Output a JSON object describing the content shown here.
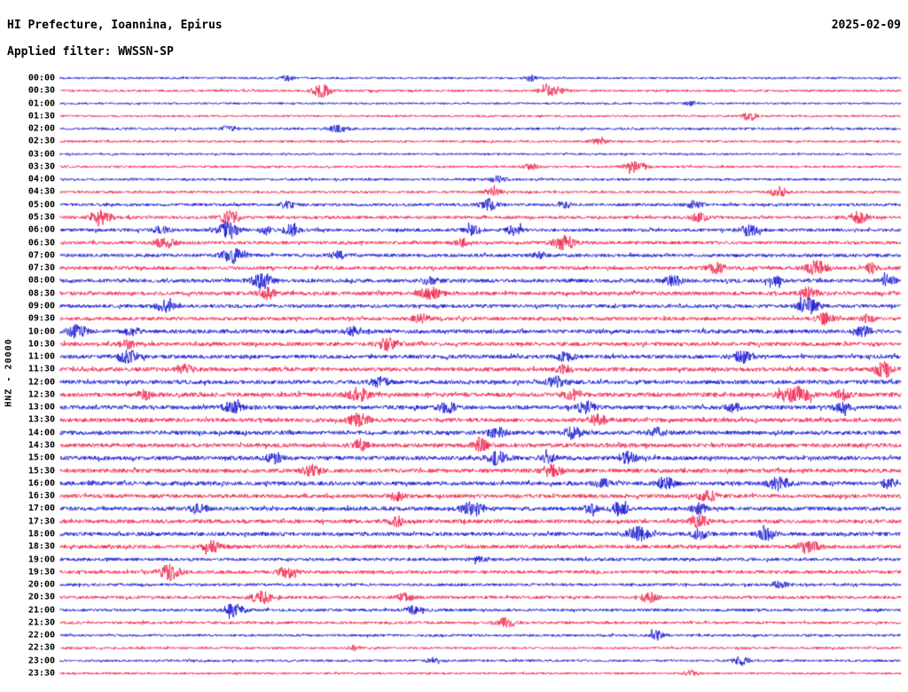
{
  "header": {
    "title": "HI Prefecture, Ioannina, Epirus",
    "date": "2025-02-09",
    "filter_line": "Applied filter: WWSSN-SP"
  },
  "axis": {
    "left_label": "HNZ - 20000"
  },
  "chart_data": {
    "type": "line",
    "title": "HI Prefecture, Ioannina, Epirus",
    "subtitle": "Applied filter: WWSSN-SP",
    "date": "2025-02-09",
    "ylabel": "HNZ - 20000",
    "layout": "helicorder, 48 half-hour traces stacked vertically, alternating colors, grid off, no x-axis ticks",
    "row_interval_minutes": 30,
    "colors": {
      "blue": "#0d0dcf",
      "red": "#ef1a44"
    },
    "rows": [
      {
        "label": "00:00",
        "color": "blue",
        "noise": 1.2,
        "events": [
          [
            0.27,
            3,
            5
          ],
          [
            0.56,
            3,
            5
          ]
        ]
      },
      {
        "label": "00:30",
        "color": "red",
        "noise": 1.3,
        "events": [
          [
            0.31,
            7,
            7
          ],
          [
            0.585,
            5,
            9
          ]
        ]
      },
      {
        "label": "01:00",
        "color": "blue",
        "noise": 1.1,
        "events": [
          [
            0.75,
            2.5,
            5
          ]
        ]
      },
      {
        "label": "01:30",
        "color": "red",
        "noise": 1.2,
        "events": [
          [
            0.82,
            5,
            5
          ]
        ]
      },
      {
        "label": "02:00",
        "color": "blue",
        "noise": 1.4,
        "events": [
          [
            0.2,
            3,
            6
          ],
          [
            0.33,
            3,
            8
          ]
        ]
      },
      {
        "label": "02:30",
        "color": "red",
        "noise": 1.3,
        "events": [
          [
            0.64,
            2.5,
            6
          ]
        ]
      },
      {
        "label": "03:00",
        "color": "blue",
        "noise": 1.1,
        "events": []
      },
      {
        "label": "03:30",
        "color": "red",
        "noise": 1.3,
        "events": [
          [
            0.685,
            6,
            8
          ],
          [
            0.56,
            3,
            6
          ]
        ]
      },
      {
        "label": "04:00",
        "color": "blue",
        "noise": 1.4,
        "events": [
          [
            0.52,
            3.5,
            6
          ]
        ]
      },
      {
        "label": "04:30",
        "color": "red",
        "noise": 1.4,
        "events": [
          [
            0.515,
            5,
            6
          ],
          [
            0.855,
            6,
            6
          ]
        ]
      },
      {
        "label": "05:00",
        "color": "blue",
        "noise": 1.6,
        "events": [
          [
            0.27,
            3.5,
            6
          ],
          [
            0.51,
            6,
            7
          ],
          [
            0.6,
            3.5,
            6
          ],
          [
            0.755,
            4,
            6
          ]
        ]
      },
      {
        "label": "05:30",
        "color": "red",
        "noise": 1.7,
        "events": [
          [
            0.05,
            7,
            8
          ],
          [
            0.2,
            7,
            8
          ],
          [
            0.76,
            4.5,
            7
          ],
          [
            0.95,
            6,
            7
          ]
        ]
      },
      {
        "label": "06:00",
        "color": "blue",
        "noise": 1.8,
        "events": [
          [
            0.12,
            4,
            6
          ],
          [
            0.2,
            8,
            8
          ],
          [
            0.245,
            5,
            5
          ],
          [
            0.275,
            6,
            6
          ],
          [
            0.49,
            5,
            6
          ],
          [
            0.54,
            5,
            6
          ],
          [
            0.82,
            6,
            7
          ]
        ]
      },
      {
        "label": "06:30",
        "color": "red",
        "noise": 1.8,
        "events": [
          [
            0.125,
            6,
            8
          ],
          [
            0.6,
            7,
            9
          ],
          [
            0.48,
            4,
            6
          ]
        ]
      },
      {
        "label": "07:00",
        "color": "blue",
        "noise": 1.9,
        "events": [
          [
            0.205,
            8,
            8
          ],
          [
            0.33,
            4,
            6
          ],
          [
            0.57,
            3.5,
            6
          ]
        ]
      },
      {
        "label": "07:30",
        "color": "red",
        "noise": 2.0,
        "events": [
          [
            0.78,
            5,
            7
          ],
          [
            0.9,
            8,
            8
          ],
          [
            0.965,
            5,
            5
          ]
        ]
      },
      {
        "label": "08:00",
        "color": "blue",
        "noise": 2.1,
        "events": [
          [
            0.24,
            8,
            8
          ],
          [
            0.44,
            4,
            6
          ],
          [
            0.73,
            5,
            7
          ],
          [
            0.85,
            5,
            6
          ],
          [
            0.985,
            6,
            5
          ]
        ]
      },
      {
        "label": "08:30",
        "color": "red",
        "noise": 2.1,
        "events": [
          [
            0.245,
            6,
            7
          ],
          [
            0.44,
            6,
            8
          ],
          [
            0.89,
            6,
            7
          ]
        ]
      },
      {
        "label": "09:00",
        "color": "blue",
        "noise": 2.0,
        "events": [
          [
            0.125,
            6,
            7
          ],
          [
            0.89,
            8,
            8
          ]
        ]
      },
      {
        "label": "09:30",
        "color": "red",
        "noise": 2.0,
        "events": [
          [
            0.43,
            4.5,
            7
          ],
          [
            0.91,
            6,
            7
          ],
          [
            0.96,
            4,
            5
          ]
        ]
      },
      {
        "label": "10:00",
        "color": "blue",
        "noise": 2.2,
        "events": [
          [
            0.02,
            7,
            7
          ],
          [
            0.085,
            4,
            6
          ],
          [
            0.35,
            4.5,
            7
          ],
          [
            0.955,
            6,
            6
          ]
        ]
      },
      {
        "label": "10:30",
        "color": "red",
        "noise": 2.2,
        "events": [
          [
            0.39,
            6,
            8
          ],
          [
            0.08,
            4,
            6
          ]
        ]
      },
      {
        "label": "11:00",
        "color": "blue",
        "noise": 2.2,
        "events": [
          [
            0.08,
            7,
            8
          ],
          [
            0.6,
            4.5,
            7
          ],
          [
            0.81,
            6,
            7
          ]
        ]
      },
      {
        "label": "11:30",
        "color": "red",
        "noise": 2.3,
        "events": [
          [
            0.15,
            4.5,
            6
          ],
          [
            0.6,
            4,
            6
          ],
          [
            0.98,
            8,
            7
          ]
        ]
      },
      {
        "label": "12:00",
        "color": "blue",
        "noise": 2.3,
        "events": [
          [
            0.38,
            4.5,
            7
          ],
          [
            0.59,
            5,
            8
          ]
        ]
      },
      {
        "label": "12:30",
        "color": "red",
        "noise": 2.4,
        "events": [
          [
            0.1,
            4.5,
            6
          ],
          [
            0.355,
            7,
            8
          ],
          [
            0.61,
            5,
            7
          ],
          [
            0.875,
            8,
            12
          ],
          [
            0.93,
            5,
            6
          ]
        ]
      },
      {
        "label": "13:00",
        "color": "blue",
        "noise": 2.3,
        "events": [
          [
            0.205,
            6,
            7
          ],
          [
            0.46,
            5,
            7
          ],
          [
            0.625,
            6,
            7
          ],
          [
            0.8,
            4,
            6
          ],
          [
            0.93,
            4.5,
            6
          ]
        ]
      },
      {
        "label": "13:30",
        "color": "red",
        "noise": 2.3,
        "events": [
          [
            0.355,
            7,
            8
          ],
          [
            0.64,
            5,
            7
          ]
        ]
      },
      {
        "label": "14:00",
        "color": "blue",
        "noise": 2.3,
        "events": [
          [
            0.52,
            5,
            7
          ],
          [
            0.61,
            6,
            7
          ],
          [
            0.71,
            5,
            6
          ]
        ]
      },
      {
        "label": "14:30",
        "color": "red",
        "noise": 2.3,
        "events": [
          [
            0.355,
            6,
            7
          ],
          [
            0.5,
            6,
            7
          ]
        ]
      },
      {
        "label": "15:00",
        "color": "blue",
        "noise": 2.3,
        "events": [
          [
            0.255,
            5,
            7
          ],
          [
            0.52,
            7,
            8
          ],
          [
            0.58,
            4,
            6
          ],
          [
            0.675,
            6,
            7
          ]
        ]
      },
      {
        "label": "15:30",
        "color": "red",
        "noise": 2.3,
        "events": [
          [
            0.3,
            6,
            7
          ],
          [
            0.585,
            6,
            8
          ]
        ]
      },
      {
        "label": "16:00",
        "color": "blue",
        "noise": 2.3,
        "events": [
          [
            0.645,
            4,
            6
          ],
          [
            0.72,
            6,
            7
          ],
          [
            0.855,
            7,
            8
          ],
          [
            0.985,
            5,
            5
          ]
        ]
      },
      {
        "label": "16:30",
        "color": "red",
        "noise": 2.2,
        "events": [
          [
            0.4,
            4.5,
            6
          ],
          [
            0.77,
            6,
            7
          ]
        ]
      },
      {
        "label": "17:00",
        "color": "blue",
        "noise": 2.2,
        "events": [
          [
            0.165,
            5,
            7
          ],
          [
            0.49,
            7,
            8
          ],
          [
            0.63,
            4,
            6
          ],
          [
            0.665,
            6,
            7
          ],
          [
            0.76,
            5,
            6
          ]
        ]
      },
      {
        "label": "17:30",
        "color": "red",
        "noise": 2.2,
        "events": [
          [
            0.4,
            4.5,
            6
          ],
          [
            0.76,
            6,
            7
          ]
        ]
      },
      {
        "label": "18:00",
        "color": "blue",
        "noise": 2.2,
        "events": [
          [
            0.687,
            8,
            8
          ],
          [
            0.76,
            5,
            6
          ],
          [
            0.84,
            6,
            7
          ]
        ]
      },
      {
        "label": "18:30",
        "color": "red",
        "noise": 2.1,
        "events": [
          [
            0.18,
            6,
            7
          ],
          [
            0.89,
            7,
            8
          ]
        ]
      },
      {
        "label": "19:00",
        "color": "blue",
        "noise": 1.8,
        "events": [
          [
            0.5,
            2.5,
            6
          ]
        ]
      },
      {
        "label": "19:30",
        "color": "red",
        "noise": 1.9,
        "events": [
          [
            0.13,
            8,
            8
          ],
          [
            0.27,
            6,
            7
          ]
        ]
      },
      {
        "label": "20:00",
        "color": "blue",
        "noise": 1.6,
        "events": [
          [
            0.855,
            3.5,
            6
          ]
        ]
      },
      {
        "label": "20:30",
        "color": "red",
        "noise": 1.7,
        "events": [
          [
            0.24,
            7,
            8
          ],
          [
            0.41,
            4.5,
            6
          ],
          [
            0.7,
            5,
            7
          ]
        ]
      },
      {
        "label": "21:00",
        "color": "blue",
        "noise": 1.6,
        "events": [
          [
            0.207,
            7,
            8
          ],
          [
            0.42,
            4.5,
            6
          ]
        ]
      },
      {
        "label": "21:30",
        "color": "red",
        "noise": 1.5,
        "events": [
          [
            0.53,
            5,
            7
          ]
        ]
      },
      {
        "label": "22:00",
        "color": "blue",
        "noise": 1.4,
        "events": [
          [
            0.71,
            4.5,
            6
          ]
        ]
      },
      {
        "label": "22:30",
        "color": "red",
        "noise": 1.3,
        "events": [
          [
            0.35,
            2.5,
            5
          ]
        ]
      },
      {
        "label": "23:00",
        "color": "blue",
        "noise": 1.3,
        "events": [
          [
            0.445,
            3.5,
            6
          ],
          [
            0.81,
            5,
            6
          ]
        ]
      },
      {
        "label": "23:30",
        "color": "red",
        "noise": 1.2,
        "events": [
          [
            0.75,
            3,
            5
          ]
        ]
      }
    ]
  }
}
